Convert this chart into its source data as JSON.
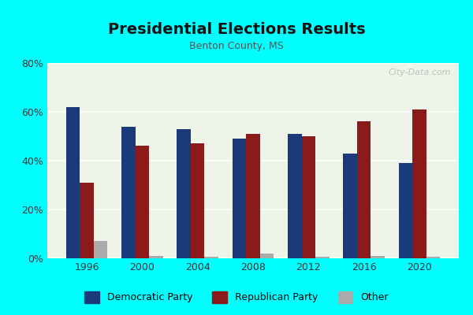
{
  "title": "Presidential Elections Results",
  "subtitle": "Benton County, MS",
  "years": [
    1996,
    2000,
    2004,
    2008,
    2012,
    2016,
    2020
  ],
  "democratic": [
    62,
    54,
    53,
    49,
    51,
    43,
    39
  ],
  "republican": [
    31,
    46,
    47,
    51,
    50,
    56,
    61
  ],
  "other": [
    7,
    1,
    0.5,
    2,
    0.5,
    1,
    0.5
  ],
  "dem_color": "#1a3a7a",
  "rep_color": "#8b1a1a",
  "other_color": "#aaaaaa",
  "bg_color": "#eef5e8",
  "outer_bg": "#00ffff",
  "ylim": [
    0,
    80
  ],
  "yticks": [
    0,
    20,
    40,
    60,
    80
  ],
  "ytick_labels": [
    "0%",
    "20%",
    "40%",
    "60%",
    "80%"
  ],
  "watermark": "City-Data.com",
  "bar_width": 0.25
}
